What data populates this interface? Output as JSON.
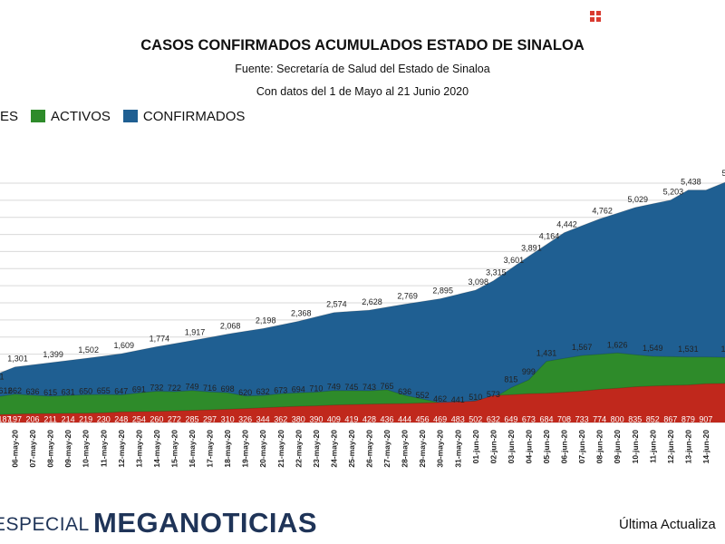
{
  "header": {
    "title": "CASOS CONFIRMADOS ACUMULADOS ESTADO DE SINALOA",
    "source": "Fuente: Secretaría de Salud del Estado de Sinaloa",
    "range": "Con datos del 1 de Mayo al 21 Junio 2020"
  },
  "legend": {
    "items": [
      {
        "label": "ES",
        "color": "#c0281c"
      },
      {
        "label": "ACTIVOS",
        "color": "#2e8b2a"
      },
      {
        "label": "CONFIRMADOS",
        "color": "#1f5f92"
      }
    ]
  },
  "footer": {
    "brand_prefix": "ESPECIAL",
    "brand_name": "MEGANOTICIAS",
    "update_text": "Última Actualiza"
  },
  "chart_data": {
    "type": "area",
    "title": "CASOS CONFIRMADOS ACUMULADOS ESTADO DE SINALOA",
    "categories": [
      "06-may-20",
      "07-may-20",
      "08-may-20",
      "09-may-20",
      "10-may-20",
      "11-may-20",
      "12-may-20",
      "13-may-20",
      "14-may-20",
      "15-may-20",
      "16-may-20",
      "17-may-20",
      "18-may-20",
      "19-may-20",
      "20-may-20",
      "21-may-20",
      "22-may-20",
      "23-may-20",
      "24-may-20",
      "25-may-20",
      "26-may-20",
      "27-may-20",
      "28-may-20",
      "29-may-20",
      "30-may-20",
      "31-may-20",
      "01-jun-20",
      "02-jun-20",
      "03-jun-20",
      "04-jun-20",
      "05-jun-20",
      "06-jun-20",
      "07-jun-20",
      "08-jun-20",
      "09-jun-20",
      "10-jun-20",
      "11-jun-20",
      "12-jun-20",
      "13-jun-20",
      "14-jun-20"
    ],
    "series": [
      {
        "name": "CONFIRMADOS",
        "color": "#1f5f92",
        "values": [
          1301,
          null,
          1399,
          null,
          1502,
          null,
          1609,
          null,
          1774,
          null,
          1917,
          null,
          2068,
          null,
          2198,
          null,
          2368,
          null,
          2574,
          null,
          2628,
          null,
          2769,
          null,
          2895,
          null,
          3098,
          3315,
          3601,
          3891,
          4164,
          4442,
          null,
          4762,
          null,
          5029,
          null,
          5203,
          5438,
          null
        ],
        "labels": [
          "1,301",
          "",
          "1,399",
          "",
          "1,502",
          "",
          "1,609",
          "",
          "1,774",
          "",
          "1,917",
          "",
          "2,068",
          "",
          "2,198",
          "",
          "2,368",
          "",
          "2,574",
          "",
          "2,628",
          "",
          "2,769",
          "",
          "2,895",
          "",
          "3,098",
          "3,315",
          "3,601",
          "3,891",
          "4,164",
          "4,442",
          "",
          "4,762",
          "",
          "5,029",
          "",
          "5,203",
          "5,438",
          ""
        ]
      },
      {
        "name": "ACTIVOS",
        "color": "#2e8b2a",
        "values": [
          662,
          636,
          615,
          631,
          650,
          655,
          647,
          691,
          732,
          722,
          749,
          716,
          698,
          620,
          632,
          673,
          694,
          710,
          749,
          745,
          743,
          765,
          636,
          552,
          462,
          441,
          510,
          573,
          815,
          999,
          1431,
          null,
          1567,
          null,
          1626,
          null,
          1549,
          null,
          1531,
          null
        ],
        "labels": [
          "662",
          "636",
          "615",
          "631",
          "650",
          "655",
          "647",
          "691",
          "732",
          "722",
          "749",
          "716",
          "698",
          "620",
          "632",
          "673",
          "694",
          "710",
          "749",
          "745",
          "743",
          "765",
          "636",
          "552",
          "462",
          "441",
          "510",
          "573",
          "815",
          "999",
          "1,431",
          "",
          "1,567",
          "",
          "1,626",
          "",
          "1,549",
          "",
          "1,531",
          ""
        ]
      },
      {
        "name": "ES",
        "color": "#c0281c",
        "values": [
          197,
          206,
          211,
          214,
          219,
          230,
          248,
          254,
          260,
          272,
          285,
          297,
          310,
          326,
          344,
          362,
          380,
          390,
          409,
          419,
          428,
          436,
          444,
          456,
          469,
          483,
          502,
          632,
          649,
          673,
          684,
          708,
          733,
          774,
          800,
          835,
          852,
          867,
          879,
          907
        ],
        "labels": [
          "197",
          "206",
          "211",
          "214",
          "219",
          "230",
          "248",
          "254",
          "260",
          "272",
          "285",
          "297",
          "310",
          "326",
          "344",
          "362",
          "380",
          "390",
          "409",
          "419",
          "428",
          "436",
          "444",
          "456",
          "469",
          "483",
          "502",
          "632",
          "649",
          "673",
          "684",
          "708",
          "733",
          "774",
          "800",
          "835",
          "852",
          "867",
          "879",
          "907"
        ]
      }
    ],
    "partial_labels": {
      "left_confirmed": "1",
      "left_active": "612",
      "left_es": "187",
      "right_confirmed": "5",
      "right_active": "1"
    },
    "ylim": [
      0,
      6000
    ],
    "grid": true,
    "legend_position": "top-left"
  }
}
